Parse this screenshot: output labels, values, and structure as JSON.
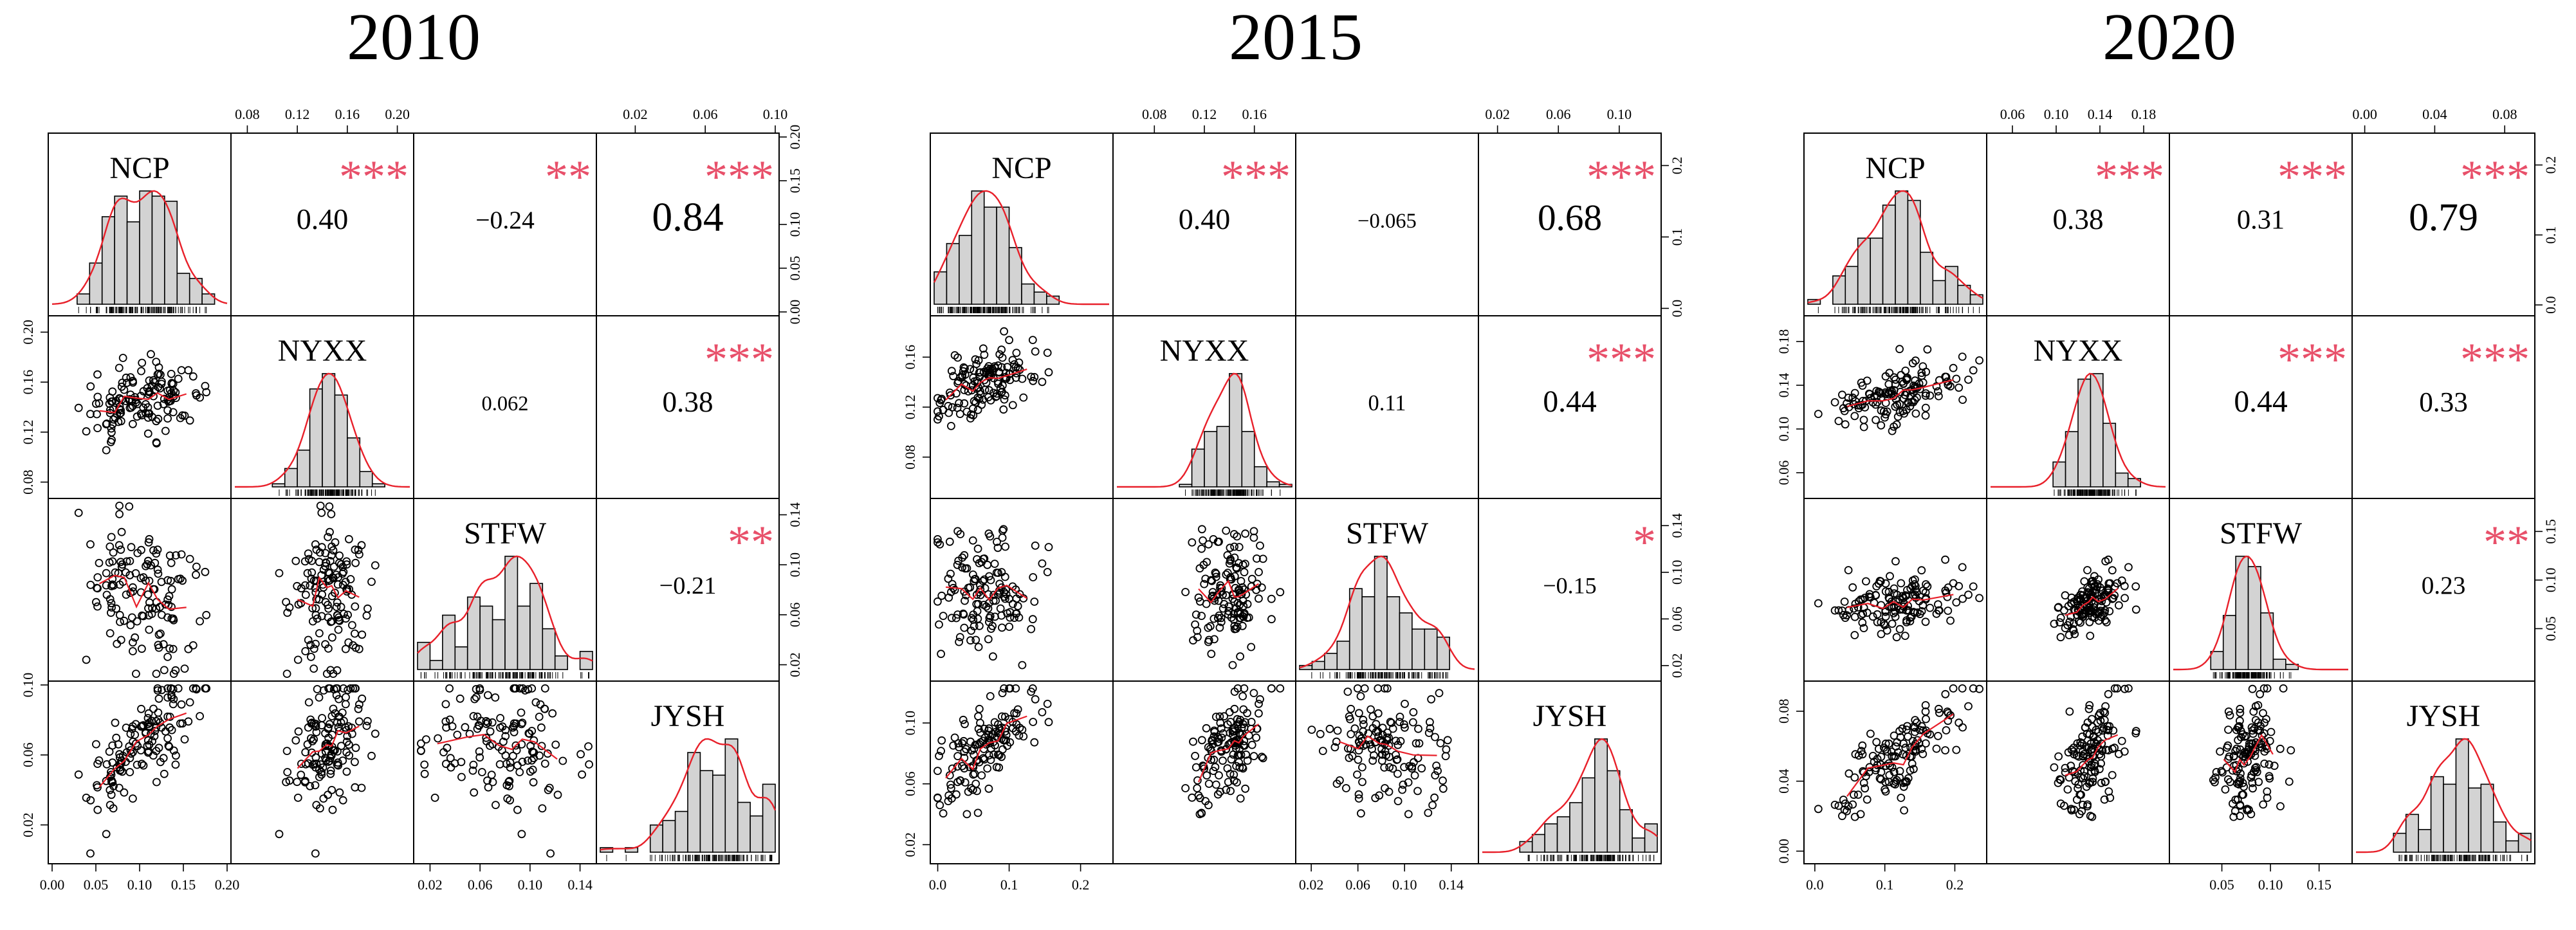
{
  "colors": {
    "bar_fill": "#d3d3d3",
    "smooth_line": "#e8202a",
    "stars": "#e8506a",
    "ink": "#000000"
  },
  "chart_data": [
    {
      "type": "scatter-matrix",
      "title": "2010",
      "variables": [
        "NCP",
        "NYXX",
        "STFW",
        "JYSH"
      ],
      "ranges": [
        [
          0.0,
          0.2
        ],
        [
          0.07,
          0.21
        ],
        [
          0.01,
          0.15
        ],
        [
          0.0,
          0.1
        ]
      ],
      "ticks": [
        [
          "0.00",
          "0.05",
          "0.10",
          "0.15",
          "0.20"
        ],
        [
          "0.08",
          "0.12",
          "0.16",
          "0.20"
        ],
        [
          "0.02",
          "0.06",
          "0.10",
          "0.14"
        ],
        [
          "0.02",
          "0.06",
          "0.10"
        ]
      ],
      "correlations": [
        {
          "pair": [
            "NCP",
            "NYXX"
          ],
          "r": "0.40",
          "stars": "***"
        },
        {
          "pair": [
            "NCP",
            "STFW"
          ],
          "r": "−0.24",
          "stars": "**"
        },
        {
          "pair": [
            "NCP",
            "JYSH"
          ],
          "r": "0.84",
          "stars": "***"
        },
        {
          "pair": [
            "NYXX",
            "STFW"
          ],
          "r": "0.062",
          "stars": ""
        },
        {
          "pair": [
            "NYXX",
            "JYSH"
          ],
          "r": "0.38",
          "stars": "***"
        },
        {
          "pair": [
            "STFW",
            "JYSH"
          ],
          "r": "−0.21",
          "stars": "**"
        }
      ],
      "means": [
        0.1,
        0.145,
        0.08,
        0.065
      ],
      "spreads": [
        0.035,
        0.015,
        0.03,
        0.02
      ],
      "n": 140
    },
    {
      "type": "scatter-matrix",
      "title": "2015",
      "variables": [
        "NCP",
        "NYXX",
        "STFW",
        "JYSH"
      ],
      "ranges": [
        [
          -0.005,
          0.24
        ],
        [
          0.05,
          0.19
        ],
        [
          0.01,
          0.16
        ],
        [
          0.01,
          0.125
        ]
      ],
      "ticks": [
        [
          "0.0",
          "0.1",
          "0.2"
        ],
        [
          "0.08",
          "0.12",
          "0.16"
        ],
        [
          "0.02",
          "0.06",
          "0.10",
          "0.14"
        ],
        [
          "0.02",
          "0.06",
          "0.10"
        ]
      ],
      "correlations": [
        {
          "pair": [
            "NCP",
            "NYXX"
          ],
          "r": "0.40",
          "stars": "***"
        },
        {
          "pair": [
            "NCP",
            "STFW"
          ],
          "r": "−0.065",
          "stars": ""
        },
        {
          "pair": [
            "NCP",
            "JYSH"
          ],
          "r": "0.68",
          "stars": "***"
        },
        {
          "pair": [
            "NYXX",
            "STFW"
          ],
          "r": "0.11",
          "stars": ""
        },
        {
          "pair": [
            "NYXX",
            "JYSH"
          ],
          "r": "0.44",
          "stars": "***"
        },
        {
          "pair": [
            "STFW",
            "JYSH"
          ],
          "r": "−0.15",
          "stars": "*"
        }
      ],
      "means": [
        0.07,
        0.14,
        0.085,
        0.085
      ],
      "spreads": [
        0.035,
        0.015,
        0.025,
        0.02
      ],
      "n": 140
    },
    {
      "type": "scatter-matrix",
      "title": "2020",
      "variables": [
        "NCP",
        "NYXX",
        "STFW",
        "JYSH"
      ],
      "ranges": [
        [
          -0.01,
          0.24
        ],
        [
          0.04,
          0.2
        ],
        [
          0.0,
          0.18
        ],
        [
          -0.005,
          0.095
        ]
      ],
      "ticks": [
        [
          "0.0",
          "0.1",
          "0.2"
        ],
        [
          "0.06",
          "0.10",
          "0.14",
          "0.18"
        ],
        [
          "0.05",
          "0.10",
          "0.15"
        ],
        [
          "0.00",
          "0.04",
          "0.08"
        ]
      ],
      "correlations": [
        {
          "pair": [
            "NCP",
            "NYXX"
          ],
          "r": "0.38",
          "stars": "***"
        },
        {
          "pair": [
            "NCP",
            "STFW"
          ],
          "r": "0.31",
          "stars": "***"
        },
        {
          "pair": [
            "NCP",
            "JYSH"
          ],
          "r": "0.79",
          "stars": "***"
        },
        {
          "pair": [
            "NYXX",
            "STFW"
          ],
          "r": "0.44",
          "stars": "***"
        },
        {
          "pair": [
            "NYXX",
            "JYSH"
          ],
          "r": "0.33",
          "stars": "***"
        },
        {
          "pair": [
            "STFW",
            "JYSH"
          ],
          "r": "0.23",
          "stars": "**"
        }
      ],
      "means": [
        0.11,
        0.13,
        0.075,
        0.05
      ],
      "spreads": [
        0.045,
        0.015,
        0.015,
        0.018
      ],
      "n": 140
    }
  ]
}
